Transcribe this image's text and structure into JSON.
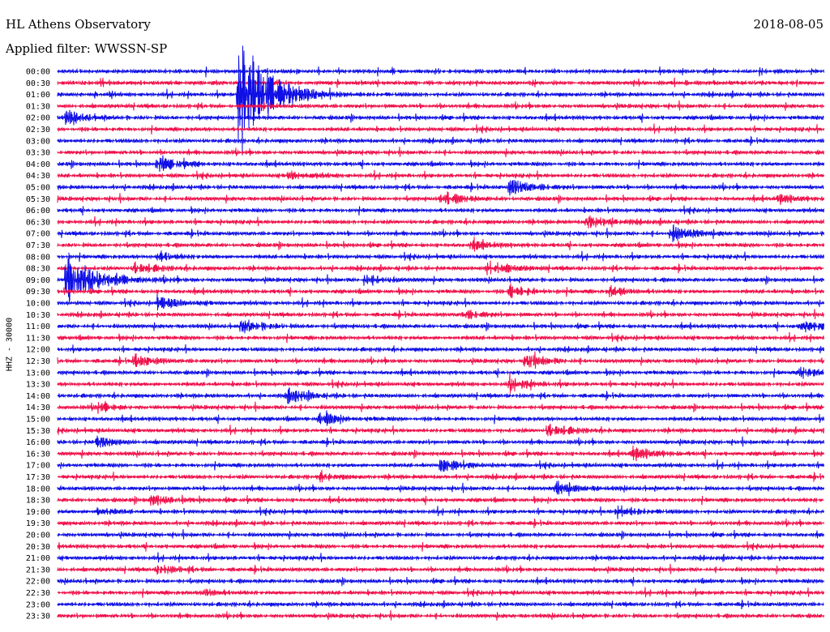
{
  "header": {
    "station": "HL Athens Observatory",
    "filter": "Applied filter: WWSSN-SP",
    "date": "2018-08-05"
  },
  "colors": {
    "trace_a": "#0f0fe6",
    "trace_b": "#f0104a",
    "text": "#000000",
    "background": "#ffffff"
  },
  "chart_data": {
    "type": "line",
    "title": "HL Athens Observatory",
    "subtitle": "Applied filter: WWSSN-SP",
    "ylabel": "HHZ - 30000",
    "xlabel": "",
    "grid": false,
    "legend": "none",
    "traces": [
      "00:00",
      "00:30",
      "01:00",
      "01:30",
      "02:00",
      "02:30",
      "03:00",
      "03:30",
      "04:00",
      "04:30",
      "05:00",
      "05:30",
      "06:00",
      "06:30",
      "07:00",
      "07:30",
      "08:00",
      "08:30",
      "09:00",
      "09:30",
      "10:00",
      "10:30",
      "11:00",
      "11:30",
      "12:00",
      "12:30",
      "13:00",
      "13:30",
      "14:00",
      "14:30",
      "15:00",
      "15:30",
      "16:00",
      "16:30",
      "17:00",
      "17:30",
      "18:00",
      "18:30",
      "19:00",
      "19:30",
      "20:00",
      "20:30",
      "21:00",
      "21:30",
      "22:00",
      "22:30",
      "23:00",
      "23:30"
    ],
    "trace_color_cycle": [
      "blue",
      "red"
    ],
    "events": [
      {
        "trace": "01:00",
        "position": 0.235,
        "amplitude": 10.0
      },
      {
        "trace": "02:00",
        "position": 0.01,
        "amplitude": 1.0
      },
      {
        "trace": "04:00",
        "position": 0.13,
        "amplitude": 1.0
      },
      {
        "trace": "04:30",
        "position": 0.3,
        "amplitude": 0.7
      },
      {
        "trace": "05:00",
        "position": 0.59,
        "amplitude": 1.2
      },
      {
        "trace": "05:30",
        "position": 0.5,
        "amplitude": 1.0
      },
      {
        "trace": "05:30",
        "position": 0.94,
        "amplitude": 0.7
      },
      {
        "trace": "06:30",
        "position": 0.69,
        "amplitude": 1.1
      },
      {
        "trace": "07:00",
        "position": 0.8,
        "amplitude": 1.2
      },
      {
        "trace": "07:30",
        "position": 0.54,
        "amplitude": 0.7
      },
      {
        "trace": "08:00",
        "position": 0.13,
        "amplitude": 0.7
      },
      {
        "trace": "08:30",
        "position": 0.1,
        "amplitude": 0.9
      },
      {
        "trace": "08:30",
        "position": 0.56,
        "amplitude": 1.1
      },
      {
        "trace": "09:00",
        "position": 0.01,
        "amplitude": 4.0
      },
      {
        "trace": "09:00",
        "position": 0.4,
        "amplitude": 0.8
      },
      {
        "trace": "09:30",
        "position": 0.59,
        "amplitude": 1.0
      },
      {
        "trace": "09:30",
        "position": 0.72,
        "amplitude": 0.8
      },
      {
        "trace": "10:00",
        "position": 0.13,
        "amplitude": 1.0
      },
      {
        "trace": "10:30",
        "position": 0.53,
        "amplitude": 0.7
      },
      {
        "trace": "11:00",
        "position": 0.24,
        "amplitude": 1.0
      },
      {
        "trace": "11:00",
        "position": 0.97,
        "amplitude": 1.0
      },
      {
        "trace": "12:30",
        "position": 0.1,
        "amplitude": 0.9
      },
      {
        "trace": "12:30",
        "position": 0.61,
        "amplitude": 1.0
      },
      {
        "trace": "13:00",
        "position": 0.97,
        "amplitude": 0.8
      },
      {
        "trace": "13:30",
        "position": 0.59,
        "amplitude": 0.9
      },
      {
        "trace": "14:00",
        "position": 0.3,
        "amplitude": 1.0
      },
      {
        "trace": "14:30",
        "position": 0.05,
        "amplitude": 0.7
      },
      {
        "trace": "15:00",
        "position": 0.34,
        "amplitude": 1.0
      },
      {
        "trace": "15:30",
        "position": 0.64,
        "amplitude": 1.0
      },
      {
        "trace": "16:00",
        "position": 0.05,
        "amplitude": 0.8
      },
      {
        "trace": "16:30",
        "position": 0.75,
        "amplitude": 1.0
      },
      {
        "trace": "17:00",
        "position": 0.5,
        "amplitude": 1.0
      },
      {
        "trace": "17:30",
        "position": 0.34,
        "amplitude": 0.6
      },
      {
        "trace": "18:00",
        "position": 0.65,
        "amplitude": 1.0
      },
      {
        "trace": "18:30",
        "position": 0.12,
        "amplitude": 0.9
      },
      {
        "trace": "19:00",
        "position": 0.05,
        "amplitude": 0.6
      },
      {
        "trace": "19:00",
        "position": 0.73,
        "amplitude": 0.9
      },
      {
        "trace": "21:30",
        "position": 0.13,
        "amplitude": 0.7
      },
      {
        "trace": "22:30",
        "position": 0.19,
        "amplitude": 0.6
      }
    ]
  }
}
